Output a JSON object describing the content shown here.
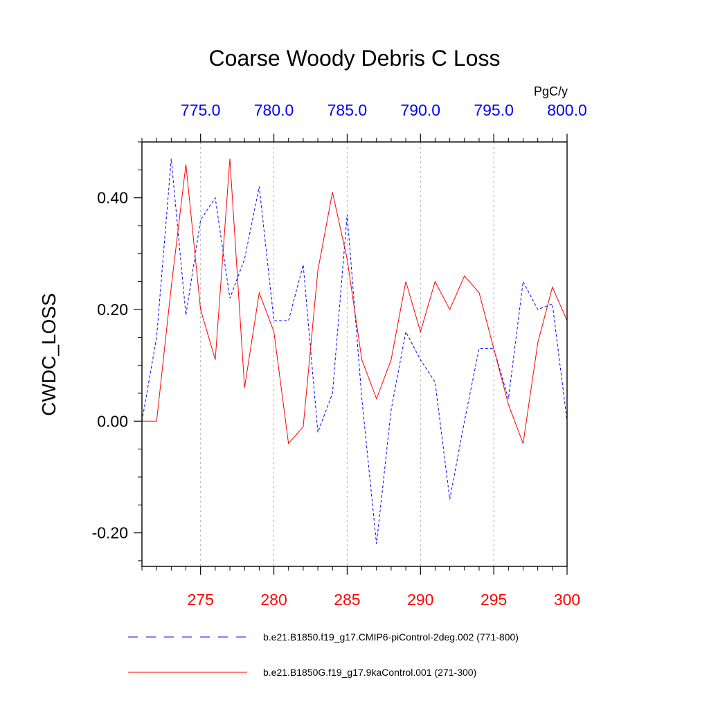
{
  "chart_data": {
    "type": "line",
    "title": "Coarse Woody Debris C Loss",
    "units": "PgC/y",
    "ylabel": "CWDC_LOSS",
    "xlabel": "",
    "ylim": [
      -0.26,
      0.5
    ],
    "y_ticks": [
      -0.2,
      0.0,
      0.2,
      0.4
    ],
    "y_tick_labels": [
      "-0.20",
      "0.00",
      "0.20",
      "0.40"
    ],
    "y_minor_step": 0.05,
    "bottom_axis": {
      "range": [
        271,
        300
      ],
      "ticks": [
        275,
        280,
        285,
        290,
        295,
        300
      ],
      "tick_labels": [
        "275",
        "280",
        "285",
        "290",
        "295",
        "300"
      ],
      "color": "#ff0000"
    },
    "top_axis": {
      "range": [
        771,
        800
      ],
      "ticks": [
        775,
        780,
        785,
        790,
        795,
        800
      ],
      "tick_labels": [
        "775.0",
        "780.0",
        "785.0",
        "790.0",
        "795.0",
        "800.0"
      ],
      "color": "#0000ff"
    },
    "vertical_gridlines": [
      275,
      280,
      285,
      290,
      295
    ],
    "series": [
      {
        "name": "b.e21.B1850.f19_g17.CMIP6-piControl-2deg.002 (771-800)",
        "axis": "top",
        "color": "#0000ff",
        "dash": "dashed",
        "x": [
          771,
          772,
          773,
          774,
          775,
          776,
          777,
          778,
          779,
          780,
          781,
          782,
          783,
          784,
          785,
          786,
          787,
          788,
          789,
          790,
          791,
          792,
          793,
          794,
          795,
          796,
          797,
          798,
          799,
          800
        ],
        "values": [
          0.0,
          0.15,
          0.47,
          0.19,
          0.36,
          0.4,
          0.22,
          0.29,
          0.42,
          0.18,
          0.18,
          0.28,
          -0.02,
          0.05,
          0.37,
          0.04,
          -0.22,
          0.02,
          0.16,
          0.11,
          0.07,
          -0.14,
          0.0,
          0.13,
          0.13,
          0.04,
          0.25,
          0.2,
          0.21,
          0.0
        ]
      },
      {
        "name": "b.e21.B1850G.f19_g17.9kaControl.001 (271-300)",
        "axis": "bottom",
        "color": "#ff0000",
        "dash": "solid",
        "x": [
          271,
          272,
          273,
          274,
          275,
          276,
          277,
          278,
          279,
          280,
          281,
          282,
          283,
          284,
          285,
          286,
          287,
          288,
          289,
          290,
          291,
          292,
          293,
          294,
          295,
          296,
          297,
          298,
          299,
          300
        ],
        "values": [
          0.0,
          0.0,
          0.24,
          0.46,
          0.2,
          0.11,
          0.47,
          0.06,
          0.23,
          0.16,
          -0.04,
          -0.01,
          0.27,
          0.41,
          0.29,
          0.11,
          0.04,
          0.11,
          0.25,
          0.16,
          0.25,
          0.2,
          0.26,
          0.23,
          0.13,
          0.03,
          -0.04,
          0.14,
          0.24,
          0.18
        ]
      }
    ],
    "legend_position": "bottom"
  }
}
